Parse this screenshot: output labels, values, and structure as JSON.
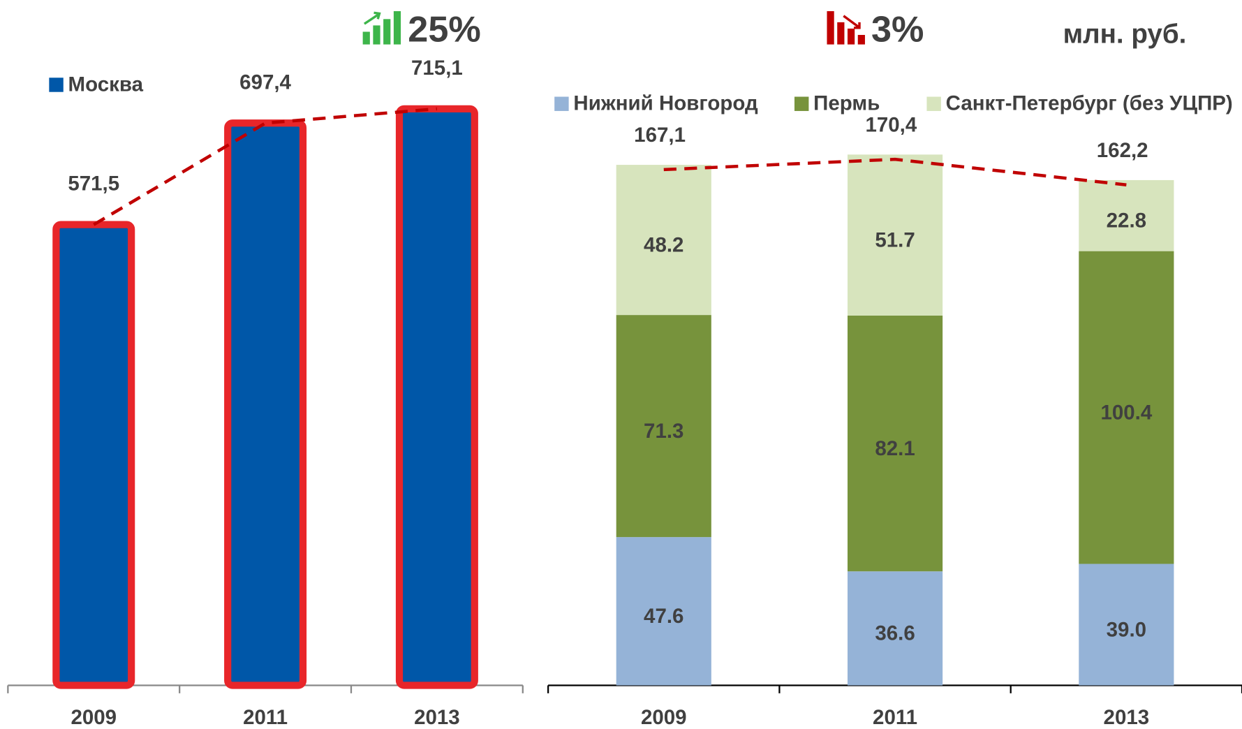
{
  "chart_data": [
    {
      "type": "bar",
      "categories": [
        "2009",
        "2011",
        "2013"
      ],
      "series": [
        {
          "name": "Москва",
          "color": "#0057a8",
          "values": [
            571.5,
            697.4,
            715.1
          ],
          "value_labels": [
            "571,5",
            "697,4",
            "715,1"
          ]
        }
      ],
      "ylim": [
        0,
        850
      ],
      "annotation": "25%",
      "annotation_color": "#3db54a",
      "edge_color": "#e8262a"
    },
    {
      "type": "stacked_bar",
      "categories": [
        "2009",
        "2011",
        "2013"
      ],
      "series": [
        {
          "name": "Нижний Новгород",
          "color": "#95b3d7",
          "values": [
            47.6,
            36.6,
            39.0
          ],
          "value_labels": [
            "47.6",
            "36.6",
            "39.0"
          ]
        },
        {
          "name": "Пермь",
          "color": "#77933c",
          "values": [
            71.3,
            82.1,
            100.4
          ],
          "value_labels": [
            "71.3",
            "82.1",
            "100.4"
          ]
        },
        {
          "name": "Санкт-Петербург (без УЦПР)",
          "color": "#d7e4bd",
          "values": [
            48.2,
            51.7,
            22.8
          ],
          "value_labels": [
            "48.2",
            "51.7",
            "22.8"
          ]
        }
      ],
      "totals": [
        167.1,
        170.4,
        162.2
      ],
      "total_labels": [
        "167,1",
        "170,4",
        "162,2"
      ],
      "ylim": [
        0,
        220
      ],
      "annotation": "3%",
      "annotation_color": "#c00000",
      "unit": "млн. руб."
    }
  ]
}
